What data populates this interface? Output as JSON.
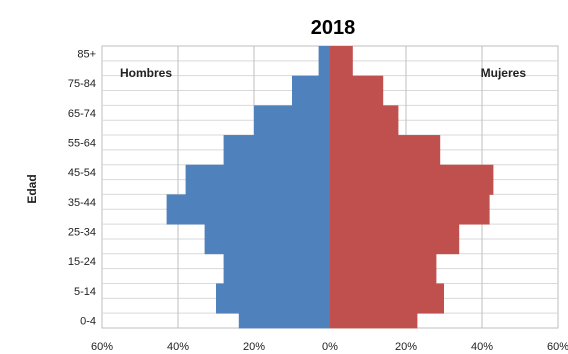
{
  "chart_data": {
    "type": "bar",
    "orientation": "horizontal-pyramid",
    "title": "2018",
    "ylabel": "Edad",
    "categories": [
      "0-4",
      "",
      "5-14",
      "",
      "15-24",
      "",
      "25-34",
      "",
      "35-44",
      "",
      "45-54",
      "",
      "55-64",
      "",
      "65-74",
      "",
      "75-84",
      "",
      "85+"
    ],
    "y_tick_labels": [
      "0-4",
      "5-14",
      "15-24",
      "25-34",
      "35-44",
      "45-54",
      "55-64",
      "65-74",
      "75-84",
      "85+"
    ],
    "x_tick_labels": [
      "60%",
      "40%",
      "20%",
      "0%",
      "20%",
      "40%",
      "60%"
    ],
    "xlim": [
      -60,
      60
    ],
    "grid": true,
    "series": [
      {
        "name": "Hombres",
        "color": "#4F81BD",
        "values": [
          24,
          30,
          30,
          28,
          28,
          33,
          33,
          43,
          43,
          38,
          38,
          28,
          28,
          20,
          20,
          10,
          10,
          3,
          3
        ]
      },
      {
        "name": "Mujeres",
        "color": "#C0504D",
        "values": [
          23,
          30,
          30,
          28,
          28,
          34,
          34,
          42,
          42,
          43,
          43,
          29,
          29,
          18,
          18,
          14,
          14,
          6,
          6
        ]
      }
    ],
    "side_labels": {
      "left": "Hombres",
      "right": "Mujeres"
    }
  }
}
